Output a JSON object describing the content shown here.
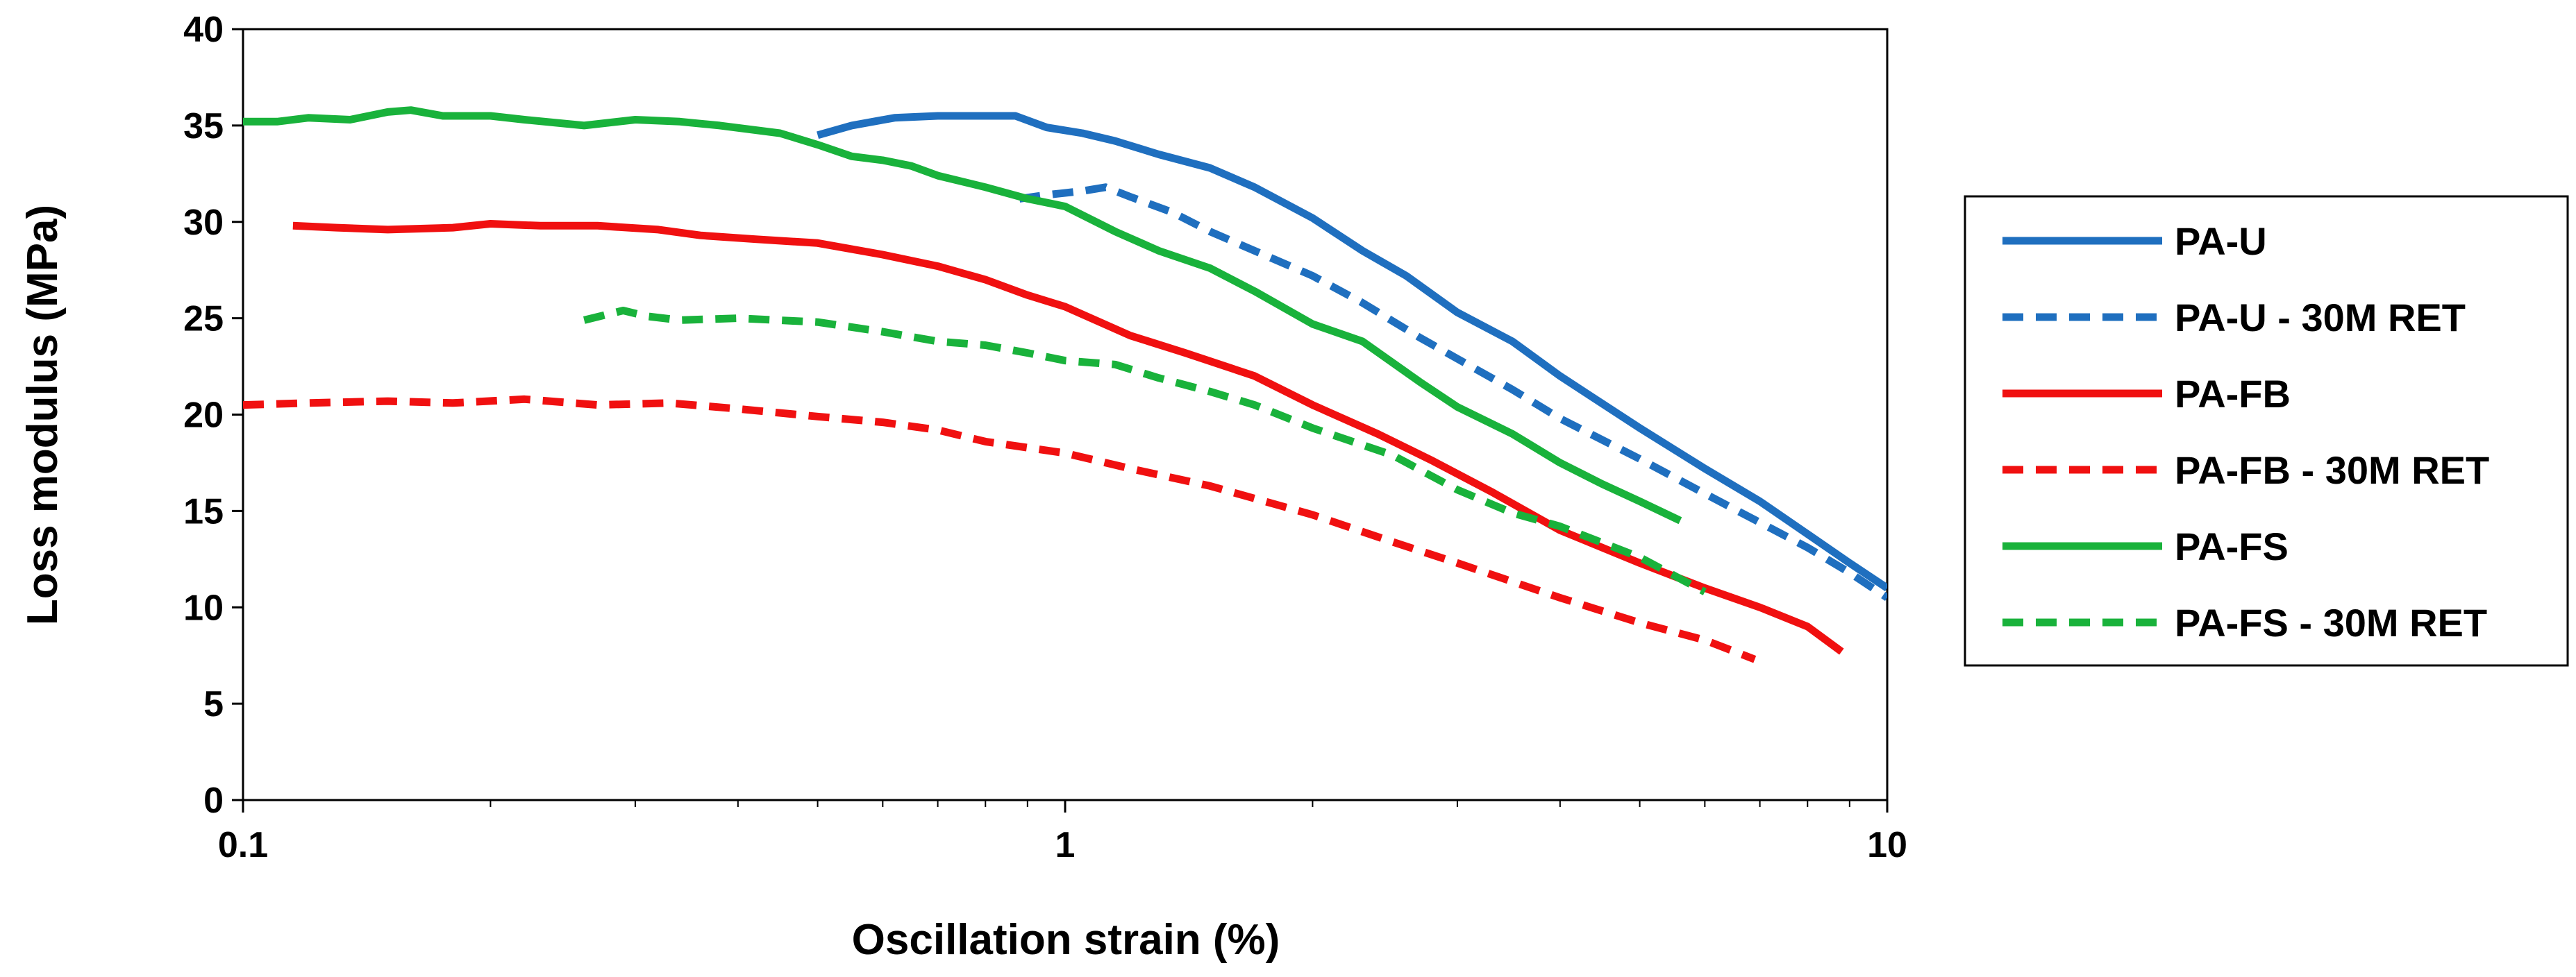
{
  "chart_data": {
    "type": "line",
    "title": "",
    "xlabel": "Oscillation strain (%)",
    "ylabel": "Loss modulus (MPa)",
    "xscale": "log",
    "xlim": [
      0.1,
      10
    ],
    "ylim": [
      0,
      40
    ],
    "xticks": [
      {
        "value": 0.1,
        "label": "0.1"
      },
      {
        "value": 1,
        "label": "1"
      },
      {
        "value": 10,
        "label": "10"
      }
    ],
    "yticks": [
      {
        "value": 0,
        "label": "0"
      },
      {
        "value": 5,
        "label": "5"
      },
      {
        "value": 10,
        "label": "10"
      },
      {
        "value": 15,
        "label": "15"
      },
      {
        "value": 20,
        "label": "20"
      },
      {
        "value": 25,
        "label": "25"
      },
      {
        "value": 30,
        "label": "30"
      },
      {
        "value": 35,
        "label": "35"
      },
      {
        "value": 40,
        "label": "40"
      }
    ],
    "grid": false,
    "legend_position": "right",
    "series": [
      {
        "name": "PA-U",
        "color": "#1F6FBF",
        "dash": "solid",
        "x": [
          0.5,
          0.55,
          0.62,
          0.7,
          0.78,
          0.87,
          0.95,
          1.05,
          1.15,
          1.3,
          1.5,
          1.7,
          2.0,
          2.3,
          2.6,
          3.0,
          3.5,
          4.0,
          5.0,
          6.0,
          7.0,
          8.0,
          9.0,
          10.0
        ],
        "y": [
          34.5,
          35.0,
          35.4,
          35.5,
          35.5,
          35.5,
          34.9,
          34.6,
          34.2,
          33.5,
          32.8,
          31.8,
          30.2,
          28.5,
          27.2,
          25.3,
          23.8,
          22.0,
          19.3,
          17.2,
          15.5,
          13.8,
          12.3,
          11.0
        ]
      },
      {
        "name": "PA-U - 30M RET",
        "color": "#1F6FBF",
        "dash": "dashed",
        "x": [
          0.88,
          0.95,
          1.05,
          1.12,
          1.2,
          1.35,
          1.5,
          1.7,
          2.0,
          2.3,
          2.7,
          3.0,
          3.5,
          4.0,
          5.0,
          6.0,
          7.0,
          8.0,
          9.0,
          10.0
        ],
        "y": [
          31.2,
          31.4,
          31.6,
          31.8,
          31.3,
          30.5,
          29.5,
          28.5,
          27.2,
          25.8,
          24.0,
          22.9,
          21.3,
          19.8,
          17.7,
          15.9,
          14.4,
          13.1,
          11.8,
          10.5
        ]
      },
      {
        "name": "PA-FB",
        "color": "#F01010",
        "dash": "solid",
        "x": [
          0.115,
          0.13,
          0.15,
          0.18,
          0.2,
          0.23,
          0.27,
          0.32,
          0.36,
          0.42,
          0.5,
          0.6,
          0.7,
          0.8,
          0.9,
          1.0,
          1.2,
          1.4,
          1.7,
          2.0,
          2.4,
          2.8,
          3.3,
          4.0,
          5.0,
          6.0,
          7.0,
          8.0,
          8.8
        ],
        "y": [
          29.8,
          29.7,
          29.6,
          29.7,
          29.9,
          29.8,
          29.8,
          29.6,
          29.3,
          29.1,
          28.9,
          28.3,
          27.7,
          27.0,
          26.2,
          25.6,
          24.1,
          23.2,
          22.0,
          20.5,
          19.0,
          17.6,
          16.0,
          14.0,
          12.3,
          11.0,
          10.0,
          9.0,
          7.7
        ]
      },
      {
        "name": "PA-FB - 30M RET",
        "color": "#F01010",
        "dash": "dashed",
        "x": [
          0.1,
          0.12,
          0.15,
          0.18,
          0.22,
          0.27,
          0.33,
          0.4,
          0.5,
          0.6,
          0.7,
          0.8,
          1.0,
          1.2,
          1.5,
          2.0,
          2.5,
          3.0,
          4.0,
          5.0,
          6.0,
          6.9
        ],
        "y": [
          20.5,
          20.6,
          20.7,
          20.6,
          20.8,
          20.5,
          20.6,
          20.3,
          19.9,
          19.6,
          19.2,
          18.6,
          18.0,
          17.2,
          16.3,
          14.8,
          13.4,
          12.3,
          10.5,
          9.2,
          8.3,
          7.3
        ]
      },
      {
        "name": "PA-FS",
        "color": "#19B23B",
        "dash": "solid",
        "x": [
          0.1,
          0.11,
          0.12,
          0.135,
          0.15,
          0.16,
          0.175,
          0.2,
          0.22,
          0.26,
          0.3,
          0.34,
          0.38,
          0.45,
          0.5,
          0.55,
          0.6,
          0.65,
          0.7,
          0.8,
          0.9,
          1.0,
          1.15,
          1.3,
          1.5,
          1.7,
          2.0,
          2.3,
          2.7,
          3.0,
          3.5,
          4.0,
          4.5,
          5.0,
          5.6
        ],
        "y": [
          35.2,
          35.2,
          35.4,
          35.3,
          35.7,
          35.8,
          35.5,
          35.5,
          35.3,
          35.0,
          35.3,
          35.2,
          35.0,
          34.6,
          34.0,
          33.4,
          33.2,
          32.9,
          32.4,
          31.8,
          31.2,
          30.8,
          29.5,
          28.5,
          27.6,
          26.4,
          24.7,
          23.8,
          21.7,
          20.4,
          19.0,
          17.5,
          16.4,
          15.5,
          14.5
        ]
      },
      {
        "name": "PA-FS - 30M RET",
        "color": "#19B23B",
        "dash": "dashed",
        "x": [
          0.26,
          0.29,
          0.31,
          0.34,
          0.4,
          0.5,
          0.6,
          0.7,
          0.8,
          0.9,
          1.0,
          1.15,
          1.3,
          1.5,
          1.7,
          2.0,
          2.5,
          3.0,
          3.5,
          4.0,
          5.0,
          6.0
        ],
        "y": [
          24.9,
          25.4,
          25.1,
          24.9,
          25.0,
          24.8,
          24.3,
          23.8,
          23.6,
          23.2,
          22.8,
          22.6,
          21.9,
          21.2,
          20.5,
          19.3,
          17.9,
          16.1,
          14.9,
          14.2,
          12.6,
          10.8
        ]
      }
    ]
  }
}
